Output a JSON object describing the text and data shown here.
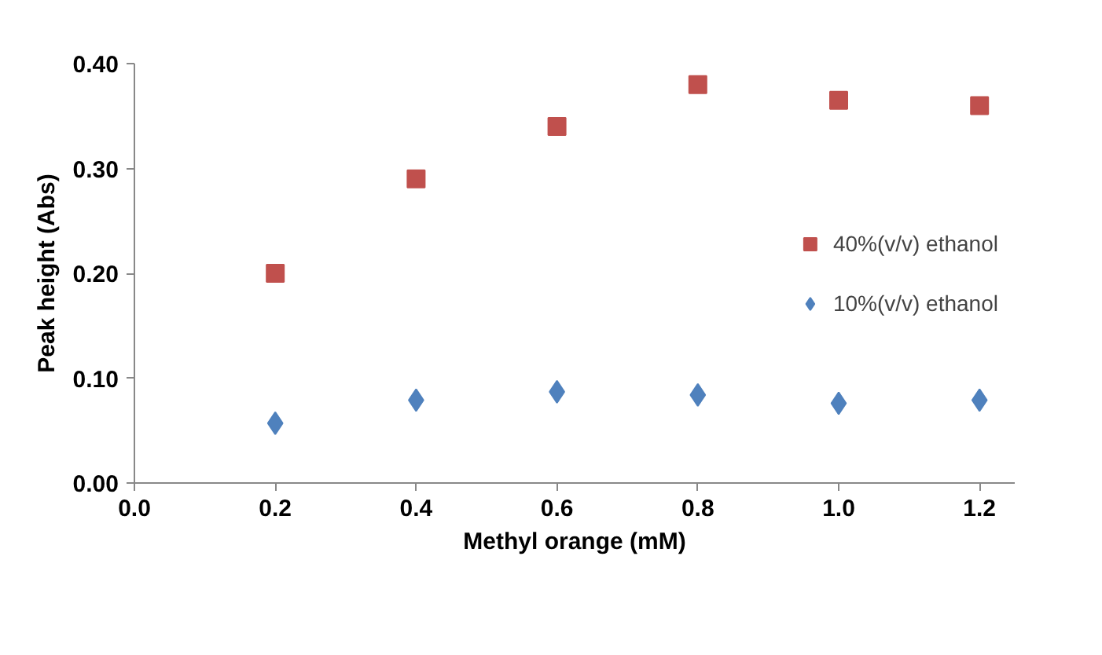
{
  "chart_data": {
    "type": "scatter",
    "xlabel": "Methyl orange (mM)",
    "ylabel": "Peak height (Abs)",
    "x": [
      0.2,
      0.4,
      0.6,
      0.8,
      1.0,
      1.2
    ],
    "series": [
      {
        "name": "40%(v/v) ethanol",
        "color": "#c0504d",
        "marker": "square",
        "values": [
          0.2,
          0.29,
          0.34,
          0.38,
          0.365,
          0.36
        ]
      },
      {
        "name": "10%(v/v) ethanol",
        "color": "#4f81bd",
        "marker": "diamond",
        "values": [
          0.057,
          0.079,
          0.087,
          0.084,
          0.076,
          0.079
        ]
      }
    ],
    "xlim": [
      0,
      1.25
    ],
    "xticks": [
      {
        "value": 0,
        "label": "0.0"
      },
      {
        "value": 0.2,
        "label": "0.2"
      },
      {
        "value": 0.4,
        "label": "0.4"
      },
      {
        "value": 0.6,
        "label": "0.6"
      },
      {
        "value": 0.8,
        "label": "0.8"
      },
      {
        "value": 1.0,
        "label": "1.0"
      },
      {
        "value": 1.2,
        "label": "1.2"
      }
    ],
    "ylim": [
      0,
      0.4
    ],
    "yticks": [
      {
        "value": 0,
        "label": "0.00"
      },
      {
        "value": 0.1,
        "label": "0.10"
      },
      {
        "value": 0.2,
        "label": "0.20"
      },
      {
        "value": 0.3,
        "label": "0.30"
      },
      {
        "value": 0.4,
        "label": "0.40"
      }
    ],
    "grid": false,
    "legend": "right"
  }
}
